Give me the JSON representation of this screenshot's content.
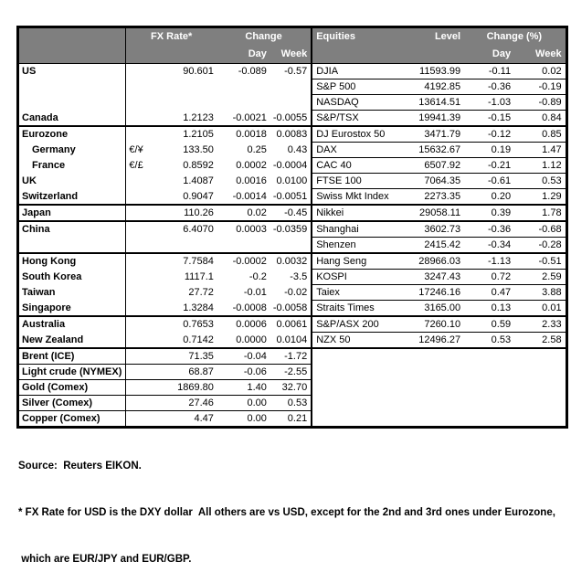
{
  "chart_data": {
    "type": "table",
    "header": {
      "fx_rate": "FX Rate*",
      "change": "Change",
      "day": "Day",
      "week": "Week",
      "equities": "Equities",
      "level": "Level",
      "change_pct": "Change (%)"
    },
    "rows": [
      {
        "country": "US",
        "pair": "",
        "fx": "90.601",
        "fx_day": "-0.089",
        "fx_week": "-0.57",
        "equity": "DJIA",
        "level": "11593.99",
        "eq_day": "-0.11",
        "eq_week": "0.02"
      },
      {
        "country": "",
        "pair": "",
        "fx": "",
        "fx_day": "",
        "fx_week": "",
        "equity": "S&P 500",
        "level": "4192.85",
        "eq_day": "-0.36",
        "eq_week": "-0.19"
      },
      {
        "country": "",
        "pair": "",
        "fx": "",
        "fx_day": "",
        "fx_week": "",
        "equity": "NASDAQ",
        "level": "13614.51",
        "eq_day": "-1.03",
        "eq_week": "-0.89"
      },
      {
        "country": "Canada",
        "pair": "",
        "fx": "1.2123",
        "fx_day": "-0.0021",
        "fx_week": "-0.0055",
        "equity": "S&P/TSX",
        "level": "19941.39",
        "eq_day": "-0.15",
        "eq_week": "0.84"
      },
      {
        "country": "Eurozone",
        "pair": "",
        "fx": "1.2105",
        "fx_day": "0.0018",
        "fx_week": "0.0083",
        "equity": "DJ Eurostox 50",
        "level": "3471.79",
        "eq_day": "-0.12",
        "eq_week": "0.85",
        "group_start": true
      },
      {
        "country": "Germany",
        "indent": true,
        "pair": "€/¥",
        "fx": "133.50",
        "fx_day": "0.25",
        "fx_week": "0.43",
        "equity": "DAX",
        "level": "15632.67",
        "eq_day": "0.19",
        "eq_week": "1.47"
      },
      {
        "country": "France",
        "indent": true,
        "pair": "€/£",
        "fx": "0.8592",
        "fx_day": "0.0002",
        "fx_week": "-0.0004",
        "equity": "CAC 40",
        "level": "6507.92",
        "eq_day": "-0.21",
        "eq_week": "1.12"
      },
      {
        "country": "UK",
        "pair": "",
        "fx": "1.4087",
        "fx_day": "0.0016",
        "fx_week": "0.0100",
        "equity": "FTSE 100",
        "level": "7064.35",
        "eq_day": "-0.61",
        "eq_week": "0.53"
      },
      {
        "country": "Switzerland",
        "pair": "",
        "fx": "0.9047",
        "fx_day": "-0.0014",
        "fx_week": "-0.0051",
        "equity": "Swiss Mkt Index",
        "level": "2273.35",
        "eq_day": "0.20",
        "eq_week": "1.29"
      },
      {
        "country": "Japan",
        "pair": "",
        "fx": "110.26",
        "fx_day": "0.02",
        "fx_week": "-0.45",
        "equity": "Nikkei",
        "level": "29058.11",
        "eq_day": "0.39",
        "eq_week": "1.78",
        "group_start": true
      },
      {
        "country": "China",
        "pair": "",
        "fx": "6.4070",
        "fx_day": "0.0003",
        "fx_week": "-0.0359",
        "equity": "Shanghai",
        "level": "3602.73",
        "eq_day": "-0.36",
        "eq_week": "-0.68",
        "group_start": true
      },
      {
        "country": "",
        "pair": "",
        "fx": "",
        "fx_day": "",
        "fx_week": "",
        "equity": "Shenzen",
        "level": "2415.42",
        "eq_day": "-0.34",
        "eq_week": "-0.28"
      },
      {
        "country": "Hong Kong",
        "pair": "",
        "fx": "7.7584",
        "fx_day": "-0.0002",
        "fx_week": "0.0032",
        "equity": "Hang Seng",
        "level": "28966.03",
        "eq_day": "-1.13",
        "eq_week": "-0.51",
        "group_start": true
      },
      {
        "country": "South Korea",
        "pair": "",
        "fx": "1117.1",
        "fx_day": "-0.2",
        "fx_week": "-3.5",
        "equity": "KOSPI",
        "level": "3247.43",
        "eq_day": "0.72",
        "eq_week": "2.59"
      },
      {
        "country": "Taiwan",
        "pair": "",
        "fx": "27.72",
        "fx_day": "-0.01",
        "fx_week": "-0.02",
        "equity": "Taiex",
        "level": "17246.16",
        "eq_day": "0.47",
        "eq_week": "3.88"
      },
      {
        "country": "Singapore",
        "pair": "",
        "fx": "1.3284",
        "fx_day": "-0.0008",
        "fx_week": "-0.0058",
        "equity": "Straits Times",
        "level": "3165.00",
        "eq_day": "0.13",
        "eq_week": "0.01"
      },
      {
        "country": "Australia",
        "pair": "",
        "fx": "0.7653",
        "fx_day": "0.0006",
        "fx_week": "0.0061",
        "equity": "S&P/ASX 200",
        "level": "7260.10",
        "eq_day": "0.59",
        "eq_week": "2.33",
        "group_start": true
      },
      {
        "country": "New Zealand",
        "pair": "",
        "fx": "0.7142",
        "fx_day": "0.0000",
        "fx_week": "0.0104",
        "equity": "NZX 50",
        "level": "12496.27",
        "eq_day": "0.53",
        "eq_week": "2.58"
      },
      {
        "country": "Brent (ICE)",
        "pair": "",
        "fx": "71.35",
        "fx_day": "-0.04",
        "fx_week": "-1.72",
        "equity": "",
        "level": "",
        "eq_day": "",
        "eq_week": "",
        "group_start": true
      },
      {
        "country": "Light crude (NYMEX)",
        "pair": "",
        "fx": "68.87",
        "fx_day": "-0.06",
        "fx_week": "-2.55",
        "equity": "",
        "level": "",
        "eq_day": "",
        "eq_week": ""
      },
      {
        "country": "Gold (Comex)",
        "pair": "",
        "fx": "1869.80",
        "fx_day": "1.40",
        "fx_week": "32.70",
        "equity": "",
        "level": "",
        "eq_day": "",
        "eq_week": ""
      },
      {
        "country": "Silver (Comex)",
        "pair": "",
        "fx": "27.46",
        "fx_day": "0.00",
        "fx_week": "0.53",
        "equity": "",
        "level": "",
        "eq_day": "",
        "eq_week": ""
      },
      {
        "country": "Copper (Comex)",
        "pair": "",
        "fx": "4.47",
        "fx_day": "0.00",
        "fx_week": "0.21",
        "equity": "",
        "level": "",
        "eq_day": "",
        "eq_week": ""
      }
    ],
    "footer": {
      "source": "Source:  Reuters EIKON.",
      "note1": "* FX Rate for USD is the DXY dollar  All others are vs USD, except for the 2nd and 3rd ones under Eurozone,",
      "note2": " which are EUR/JPY and EUR/GBP."
    }
  },
  "colors": {
    "header_bg": "#7f7f7f",
    "header_text": "#ffffff",
    "border": "#000000",
    "row_bg": "#ffffff"
  }
}
